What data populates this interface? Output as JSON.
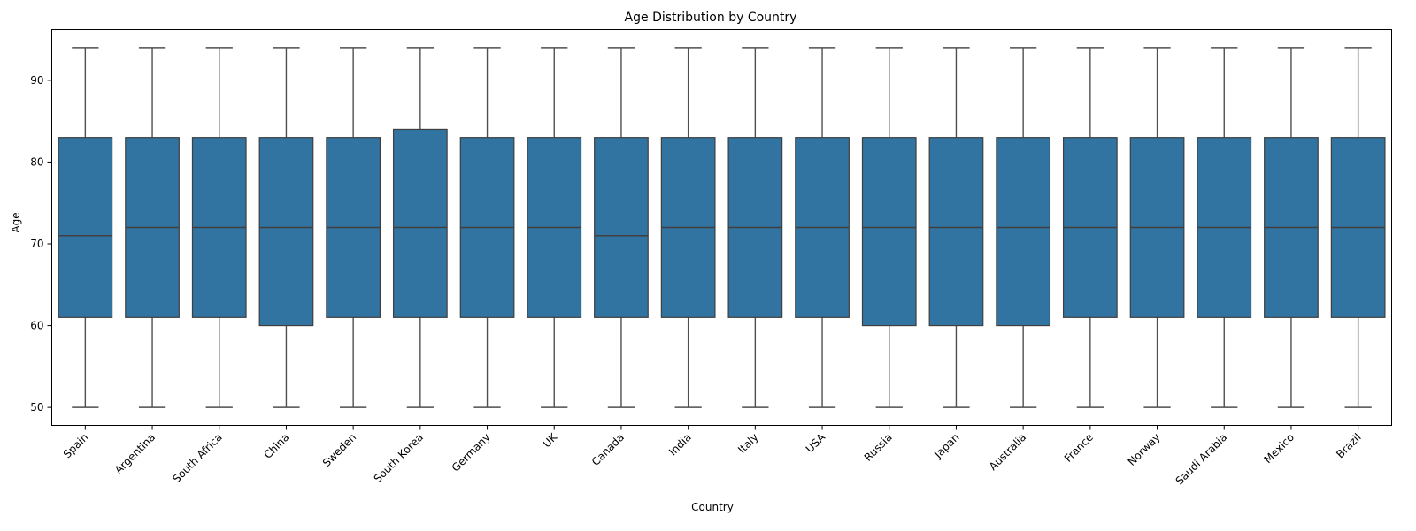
{
  "chart_data": {
    "type": "box",
    "title": "Age Distribution by Country",
    "xlabel": "Country",
    "ylabel": "Age",
    "ylim": [
      47.8,
      96.2
    ],
    "yticks": [
      50,
      60,
      70,
      80,
      90
    ],
    "grid": false,
    "box_color": "#3274a1",
    "categories": [
      "Spain",
      "Argentina",
      "South Africa",
      "China",
      "Sweden",
      "South Korea",
      "Germany",
      "UK",
      "Canada",
      "India",
      "Italy",
      "USA",
      "Russia",
      "Japan",
      "Australia",
      "France",
      "Norway",
      "Saudi Arabia",
      "Mexico",
      "Brazil"
    ],
    "min": [
      50,
      50,
      50,
      50,
      50,
      50,
      50,
      50,
      50,
      50,
      50,
      50,
      50,
      50,
      50,
      50,
      50,
      50,
      50,
      50
    ],
    "q1": [
      61,
      61,
      61,
      60,
      61,
      61,
      61,
      61,
      61,
      61,
      61,
      61,
      60,
      60,
      60,
      61,
      61,
      61,
      61,
      61
    ],
    "median": [
      71,
      72,
      72,
      72,
      72,
      72,
      72,
      72,
      71,
      72,
      72,
      72,
      72,
      72,
      72,
      72,
      72,
      72,
      72,
      72
    ],
    "q3": [
      83,
      83,
      83,
      83,
      83,
      84,
      83,
      83,
      83,
      83,
      83,
      83,
      83,
      83,
      83,
      83,
      83,
      83,
      83,
      83
    ],
    "max": [
      94,
      94,
      94,
      94,
      94,
      94,
      94,
      94,
      94,
      94,
      94,
      94,
      94,
      94,
      94,
      94,
      94,
      94,
      94,
      94
    ]
  }
}
